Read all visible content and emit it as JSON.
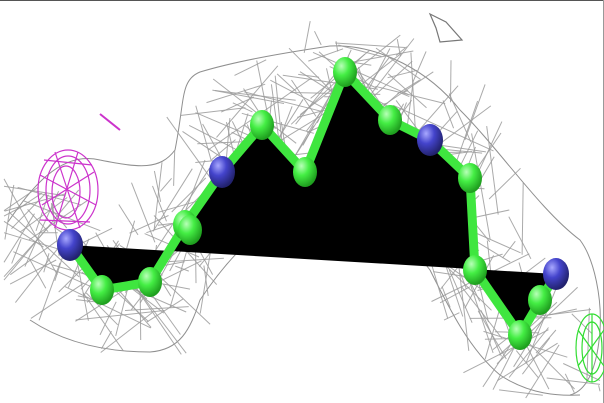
{
  "scene": {
    "background": "#ffffff",
    "mesh_color": "#9c9c9c",
    "carbon_color": "#3fe63f",
    "nitrogen_color": "#3c3cb8",
    "positive_density_color": "#cc33cc",
    "negative_density_color": "#33dd33",
    "atoms": [
      {
        "element": "N"
      },
      {
        "element": "C"
      },
      {
        "element": "C"
      },
      {
        "element": "C"
      },
      {
        "element": "C"
      },
      {
        "element": "N"
      },
      {
        "element": "C"
      },
      {
        "element": "C"
      },
      {
        "element": "C"
      },
      {
        "element": "C"
      },
      {
        "element": "N"
      },
      {
        "element": "C"
      },
      {
        "element": "C"
      },
      {
        "element": "C"
      },
      {
        "element": "C"
      },
      {
        "element": "N"
      }
    ]
  }
}
